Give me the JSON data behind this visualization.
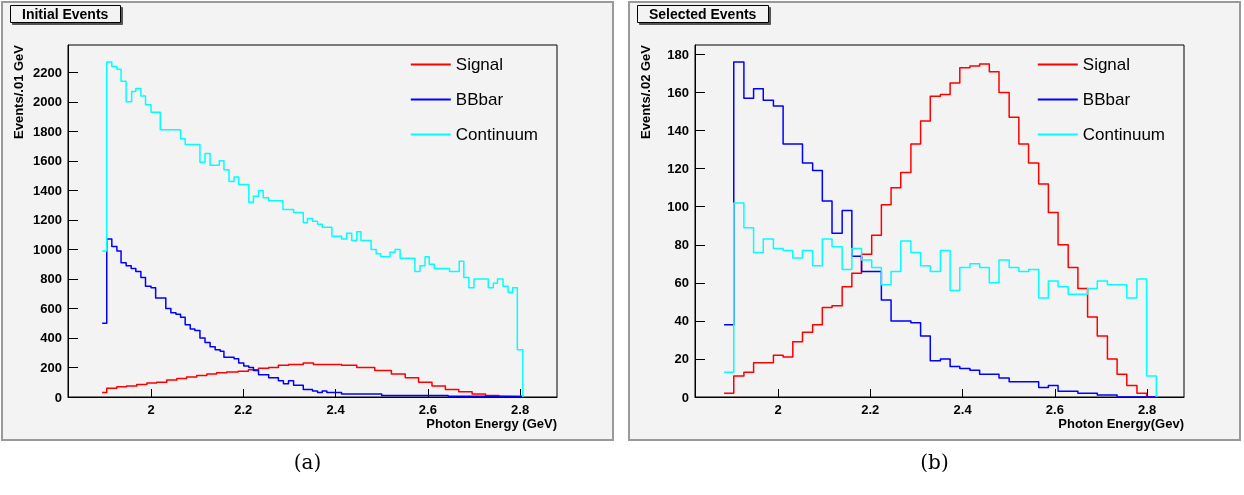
{
  "chart_data": [
    {
      "type": "step",
      "title": "Initial Events",
      "xlabel": "Photon Energy (GeV)",
      "ylabel": "Events/.01 GeV",
      "annotations": [
        "(a)"
      ],
      "xlim": [
        1.82,
        2.88
      ],
      "xticks": [
        2,
        2.2,
        2.4,
        2.6,
        2.8
      ],
      "ylim": [
        0,
        2385
      ],
      "yticks": [
        0,
        200,
        400,
        600,
        800,
        1000,
        1200,
        1400,
        1600,
        1800,
        2000,
        2200
      ],
      "grid": false,
      "legend": "top right",
      "series": [
        {
          "name": "Signal",
          "color": "#ff0000",
          "x": [
            1.894,
            1.904,
            1.926,
            1.947,
            1.969,
            1.991,
            2.012,
            2.034,
            2.056,
            2.077,
            2.099,
            2.121,
            2.142,
            2.164,
            2.189,
            2.211,
            2.233,
            2.255,
            2.276,
            2.298,
            2.33,
            2.352,
            2.413,
            2.446,
            2.485,
            2.521,
            2.551,
            2.58,
            2.609,
            2.638,
            2.667,
            2.696,
            2.725,
            2.754,
            2.806
          ],
          "values": [
            30,
            60,
            70,
            75,
            85,
            95,
            100,
            115,
            125,
            135,
            145,
            155,
            165,
            170,
            175,
            185,
            195,
            200,
            215,
            220,
            230,
            220,
            215,
            200,
            180,
            155,
            130,
            100,
            75,
            50,
            35,
            20,
            10,
            5,
            0
          ]
        },
        {
          "name": "BBbar",
          "color": "#0000ff",
          "x": [
            1.894,
            1.904,
            1.915,
            1.926,
            1.935,
            1.946,
            1.957,
            1.967,
            1.978,
            1.988,
            2.0,
            2.01,
            2.032,
            2.043,
            2.054,
            2.064,
            2.074,
            2.085,
            2.095,
            2.106,
            2.117,
            2.128,
            2.139,
            2.15,
            2.158,
            2.18,
            2.19,
            2.201,
            2.212,
            2.222,
            2.233,
            2.255,
            2.276,
            2.287,
            2.298,
            2.309,
            2.33,
            2.35,
            2.361,
            2.371,
            2.381,
            2.413,
            2.446,
            2.5,
            2.572,
            2.644,
            2.717,
            2.806
          ],
          "values": [
            500,
            1070,
            1020,
            990,
            910,
            890,
            870,
            850,
            810,
            750,
            740,
            670,
            600,
            570,
            560,
            540,
            490,
            460,
            450,
            400,
            370,
            340,
            320,
            310,
            270,
            260,
            230,
            210,
            200,
            180,
            150,
            130,
            110,
            90,
            110,
            80,
            50,
            40,
            30,
            40,
            30,
            20,
            20,
            10,
            10,
            5,
            2,
            0
          ]
        },
        {
          "name": "Continuum",
          "color": "#00ffff",
          "x": [
            1.894,
            1.904,
            1.915,
            1.926,
            1.935,
            1.946,
            1.958,
            1.967,
            1.978,
            1.988,
            2.0,
            2.02,
            2.064,
            2.074,
            2.106,
            2.117,
            2.128,
            2.148,
            2.158,
            2.169,
            2.18,
            2.19,
            2.212,
            2.222,
            2.233,
            2.243,
            2.255,
            2.286,
            2.309,
            2.33,
            2.339,
            2.35,
            2.361,
            2.371,
            2.392,
            2.413,
            2.424,
            2.435,
            2.446,
            2.455,
            2.477,
            2.488,
            2.498,
            2.518,
            2.529,
            2.54,
            2.551,
            2.572,
            2.583,
            2.594,
            2.603,
            2.614,
            2.625,
            2.647,
            2.668,
            2.678,
            2.689,
            2.7,
            2.731,
            2.742,
            2.751,
            2.763,
            2.774,
            2.784,
            2.794,
            2.806
          ],
          "values": [
            990,
            2270,
            2240,
            2220,
            2140,
            2000,
            2070,
            2090,
            2040,
            1980,
            1930,
            1810,
            1750,
            1710,
            1590,
            1650,
            1570,
            1600,
            1540,
            1460,
            1490,
            1440,
            1320,
            1360,
            1400,
            1350,
            1330,
            1270,
            1250,
            1180,
            1210,
            1190,
            1170,
            1150,
            1090,
            1070,
            1110,
            1060,
            1120,
            1060,
            1000,
            970,
            950,
            980,
            1000,
            940,
            940,
            850,
            890,
            950,
            900,
            870,
            870,
            850,
            920,
            810,
            740,
            800,
            740,
            770,
            800,
            750,
            710,
            740,
            320,
            0
          ]
        }
      ]
    },
    {
      "type": "step",
      "title": "Selected Events",
      "xlabel": "Photon Energy(Gev)",
      "ylabel": "Events/.02 GeV",
      "annotations": [
        "(b)"
      ],
      "xlim": [
        1.82,
        2.88
      ],
      "xticks": [
        2,
        2.2,
        2.4,
        2.6,
        2.8
      ],
      "ylim": [
        0,
        185
      ],
      "yticks": [
        0,
        20,
        40,
        60,
        80,
        100,
        120,
        140,
        160,
        180
      ],
      "grid": false,
      "legend": "top right",
      "x": [
        1.883,
        1.904,
        1.926,
        1.947,
        1.968,
        1.99,
        2.011,
        2.032,
        2.053,
        2.075,
        2.096,
        2.117,
        2.139,
        2.16,
        2.181,
        2.203,
        2.224,
        2.245,
        2.266,
        2.288,
        2.309,
        2.33,
        2.352,
        2.373,
        2.394,
        2.416,
        2.437,
        2.458,
        2.479,
        2.501,
        2.522,
        2.543,
        2.565,
        2.586,
        2.607,
        2.629,
        2.65,
        2.671,
        2.692,
        2.714,
        2.735,
        2.756,
        2.778,
        2.799,
        2.82
      ],
      "series": [
        {
          "name": "Signal",
          "color": "#ff0000",
          "values": [
            2,
            11,
            13,
            18,
            18,
            22,
            21,
            29,
            34,
            38,
            47,
            48,
            58,
            65,
            75,
            85,
            101,
            110,
            118,
            133,
            145,
            158,
            159,
            165,
            173,
            174,
            175,
            171,
            160,
            147,
            133,
            123,
            112,
            97,
            80,
            68,
            57,
            42,
            32,
            20,
            12,
            6,
            2,
            0,
            0
          ]
        },
        {
          "name": "BBbar",
          "color": "#0000ff",
          "values": [
            38,
            176,
            157,
            162,
            156,
            153,
            133,
            133,
            123,
            119,
            103,
            86,
            98,
            74,
            66,
            66,
            51,
            40,
            40,
            39,
            32,
            19,
            20,
            16,
            15,
            14,
            12,
            12,
            10,
            8,
            8,
            8,
            5,
            6,
            3,
            3,
            2,
            2,
            1,
            1,
            0,
            0,
            0,
            0,
            0
          ]
        },
        {
          "name": "Continuum",
          "color": "#00ffff",
          "values": [
            13,
            102,
            89,
            76,
            83,
            78,
            77,
            73,
            77,
            69,
            83,
            79,
            67,
            78,
            72,
            68,
            59,
            66,
            82,
            76,
            69,
            66,
            77,
            56,
            68,
            70,
            68,
            60,
            72,
            68,
            66,
            67,
            52,
            61,
            58,
            54,
            54,
            57,
            61,
            59,
            59,
            52,
            62,
            11,
            0
          ]
        }
      ]
    }
  ]
}
